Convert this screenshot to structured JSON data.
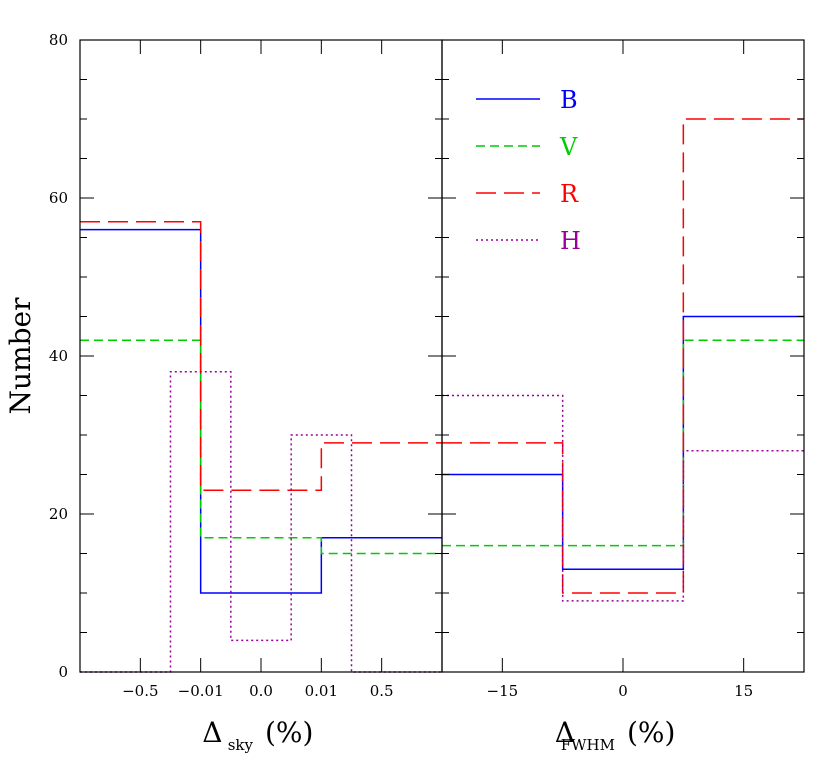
{
  "chart_data": {
    "type": "step-histogram",
    "ylabel": "Number",
    "ylim": [
      0,
      80
    ],
    "yticks": [
      "0",
      "20",
      "40",
      "60",
      "80"
    ],
    "legend": [
      {
        "key": "B",
        "label": "B",
        "color": "#0000ff",
        "dash": "solid"
      },
      {
        "key": "V",
        "label": "V",
        "color": "#00cc00",
        "dash": "short-dash"
      },
      {
        "key": "R",
        "label": "R",
        "color": "#ff0000",
        "dash": "long-dash"
      },
      {
        "key": "H",
        "label": "H",
        "color": "#990099",
        "dash": "dotted"
      }
    ],
    "panels": [
      {
        "id": "sky",
        "xlabel_main": "Δ",
        "xlabel_sub": "sky",
        "xlabel_unit": "(%)",
        "xlim": [
          -3,
          3
        ],
        "xticks": [
          {
            "pos": -2,
            "label": "−0.5"
          },
          {
            "pos": -1,
            "label": "−0.01"
          },
          {
            "pos": 0,
            "label": "0.0"
          },
          {
            "pos": 1,
            "label": "0.01"
          },
          {
            "pos": 2,
            "label": "0.5"
          }
        ],
        "series": [
          {
            "name": "B",
            "edges": [
              -3,
              -1,
              1,
              3
            ],
            "values": [
              56,
              10,
              17
            ]
          },
          {
            "name": "V",
            "edges": [
              -3,
              -1,
              1,
              3
            ],
            "values": [
              42,
              17,
              15
            ]
          },
          {
            "name": "R",
            "edges": [
              -3,
              -1,
              1,
              3
            ],
            "values": [
              57,
              23,
              29
            ]
          },
          {
            "name": "H",
            "edges": [
              -3,
              -1.5,
              -0.5,
              0.5,
              1.5,
              3
            ],
            "values": [
              0,
              38,
              4,
              30,
              0
            ]
          }
        ]
      },
      {
        "id": "fwhm",
        "xlabel_main": "Δ",
        "xlabel_sub": "FWHM",
        "xlabel_unit": "(%)",
        "xlim": [
          -22.5,
          22.5
        ],
        "xticks": [
          {
            "pos": -15,
            "label": "−15"
          },
          {
            "pos": 0,
            "label": "0"
          },
          {
            "pos": 15,
            "label": "15"
          }
        ],
        "series": [
          {
            "name": "B",
            "edges": [
              -22.5,
              -7.5,
              7.5,
              22.5
            ],
            "values": [
              25,
              13,
              45
            ]
          },
          {
            "name": "V",
            "edges": [
              -22.5,
              -7.5,
              7.5,
              22.5
            ],
            "values": [
              16,
              16,
              42
            ]
          },
          {
            "name": "R",
            "edges": [
              -22.5,
              -7.5,
              7.5,
              22.5
            ],
            "values": [
              29,
              10,
              70
            ]
          },
          {
            "name": "H",
            "edges": [
              -22.5,
              -7.5,
              7.5,
              22.5
            ],
            "values": [
              35,
              9,
              28
            ]
          }
        ]
      }
    ]
  }
}
